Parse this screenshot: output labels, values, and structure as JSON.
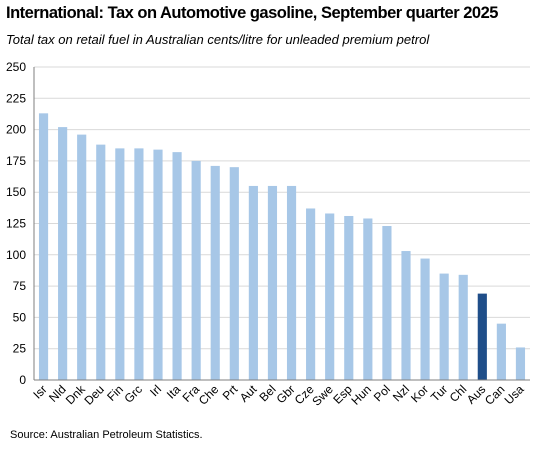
{
  "title": "International: Tax on Automotive gasoline, September quarter 2025",
  "subtitle": "Total tax on retail fuel in Australian cents/litre for unleaded premium petrol",
  "source": "Source: Australian Petroleum Statistics.",
  "colors": {
    "bar": "#a7c7e7",
    "highlight": "#1f4e89",
    "grid": "#d9d9d9",
    "axis": "#7f7f7f"
  },
  "chart_data": {
    "type": "bar",
    "title": "International: Tax on Automotive gasoline, September quarter 2025",
    "subtitle": "Total tax on retail fuel in Australian cents/litre for unleaded premium petrol",
    "xlabel": "",
    "ylabel": "",
    "ylim": [
      0,
      250
    ],
    "yticks": [
      0,
      25,
      50,
      75,
      100,
      125,
      150,
      175,
      200,
      225,
      250
    ],
    "grid": true,
    "legend": "none",
    "highlight_category": "Aus",
    "categories": [
      "Isr",
      "Nld",
      "Dnk",
      "Deu",
      "Fin",
      "Grc",
      "Irl",
      "Ita",
      "Fra",
      "Che",
      "Prt",
      "Aut",
      "Bel",
      "Gbr",
      "Cze",
      "Swe",
      "Esp",
      "Hun",
      "Pol",
      "Nzl",
      "Kor",
      "Tur",
      "Chl",
      "Aus",
      "Can",
      "Usa"
    ],
    "values": [
      213,
      202,
      196,
      188,
      185,
      185,
      184,
      182,
      175,
      171,
      170,
      155,
      155,
      155,
      137,
      133,
      131,
      129,
      123,
      103,
      97,
      85,
      84,
      69,
      45,
      26
    ]
  }
}
